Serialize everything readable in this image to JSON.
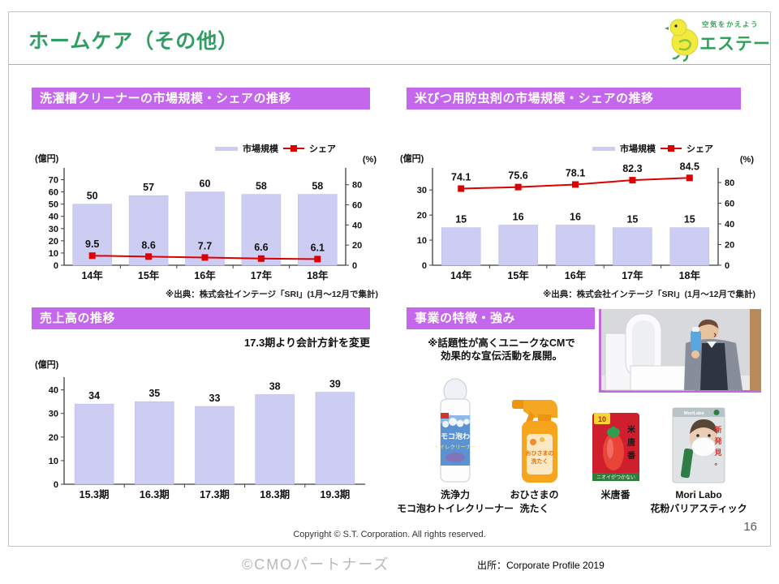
{
  "page": {
    "title": "ホームケア（その他）",
    "page_number": "16",
    "copyright": "Copyright © S.T. Corporation. All rights reserved.",
    "credit": "©CMOパートナーズ",
    "source_note": "出所：Corporate Profile 2019"
  },
  "logo": {
    "tagline": "空気をかえよう",
    "brand": "エステー"
  },
  "colors": {
    "accent_purple": "#c567ec",
    "bar_fill": "#cdccf2",
    "bar_edge": "#b9b8e0",
    "line_red": "#dd0000",
    "title_green": "#2f9e63",
    "axis": "#3f3f3f"
  },
  "panels": {
    "tub_cleaner": {
      "header": "洗濯槽クリーナーの市場規模・シェアの推移",
      "source": "※出典：株式会社インテージ「SRI」(1月～12月で集計)"
    },
    "rice_insect": {
      "header": "米びつ用防虫剤の市場規模・シェアの推移",
      "source": "※出典：株式会社インテージ「SRI」(1月～12月で集計)"
    },
    "sales": {
      "header": "売上高の推移",
      "note": "17.3期より会計方針を変更"
    },
    "strengths": {
      "header": "事業の特徴・強み",
      "note_line1": "※話題性が高くユニークなCMで",
      "note_line2": "効果的な宣伝活動を展開。",
      "products": [
        {
          "line1": "洗浄力",
          "line2": "モコ泡わトイレクリーナー"
        },
        {
          "line1": "おひさまの",
          "line2": "洗たく"
        },
        {
          "line1": "米唐番",
          "line2": ""
        },
        {
          "line1": "Mori Labo",
          "line2": "花粉バリアスティック"
        }
      ]
    }
  },
  "chart_data": [
    {
      "type": "bar",
      "title": "洗濯槽クリーナーの市場規模・シェアの推移",
      "categories": [
        "14年",
        "15年",
        "16年",
        "17年",
        "18年"
      ],
      "series": [
        {
          "name": "市場規模",
          "kind": "bar",
          "axis": "left",
          "values": [
            50,
            57,
            60,
            58,
            58
          ]
        },
        {
          "name": "シェア",
          "kind": "line",
          "axis": "right",
          "values": [
            9.5,
            8.6,
            7.7,
            6.6,
            6.1
          ]
        }
      ],
      "ylabel_left": "(億円)",
      "ylabel_right": "(%)",
      "ylim_left": [
        0,
        77
      ],
      "left_ticks": [
        0,
        10,
        20,
        30,
        40,
        50,
        60,
        70
      ],
      "ylim_right": [
        0,
        93.5
      ],
      "right_ticks": [
        0,
        20,
        40,
        60,
        80
      ],
      "legend_position": "top-right",
      "grid": false
    },
    {
      "type": "bar",
      "title": "米びつ用防虫剤の市場規模・シェアの推移",
      "categories": [
        "14年",
        "15年",
        "16年",
        "17年",
        "18年"
      ],
      "series": [
        {
          "name": "市場規模",
          "kind": "bar",
          "axis": "left",
          "values": [
            15,
            16,
            16,
            15,
            15
          ]
        },
        {
          "name": "シェア",
          "kind": "line",
          "axis": "right",
          "values": [
            74.1,
            75.6,
            78.1,
            82.3,
            84.5
          ]
        }
      ],
      "ylabel_left": "(億円)",
      "ylabel_right": "(%)",
      "ylim_left": [
        0,
        37.5
      ],
      "left_ticks": [
        0,
        10,
        20,
        30
      ],
      "ylim_right": [
        0,
        91
      ],
      "right_ticks": [
        0,
        20,
        40,
        60,
        80
      ],
      "legend_position": "top-right",
      "grid": false
    },
    {
      "type": "bar",
      "title": "売上高の推移",
      "categories": [
        "15.3期",
        "16.3期",
        "17.3期",
        "18.3期",
        "19.3期"
      ],
      "series": [
        {
          "name": "売上高",
          "kind": "bar",
          "axis": "left",
          "values": [
            34,
            35,
            33,
            38,
            39
          ]
        }
      ],
      "ylabel_left": "(億円)",
      "ylim_left": [
        0,
        44
      ],
      "left_ticks": [
        0,
        10,
        20,
        30,
        40
      ],
      "legend_position": "none",
      "grid": false
    }
  ]
}
